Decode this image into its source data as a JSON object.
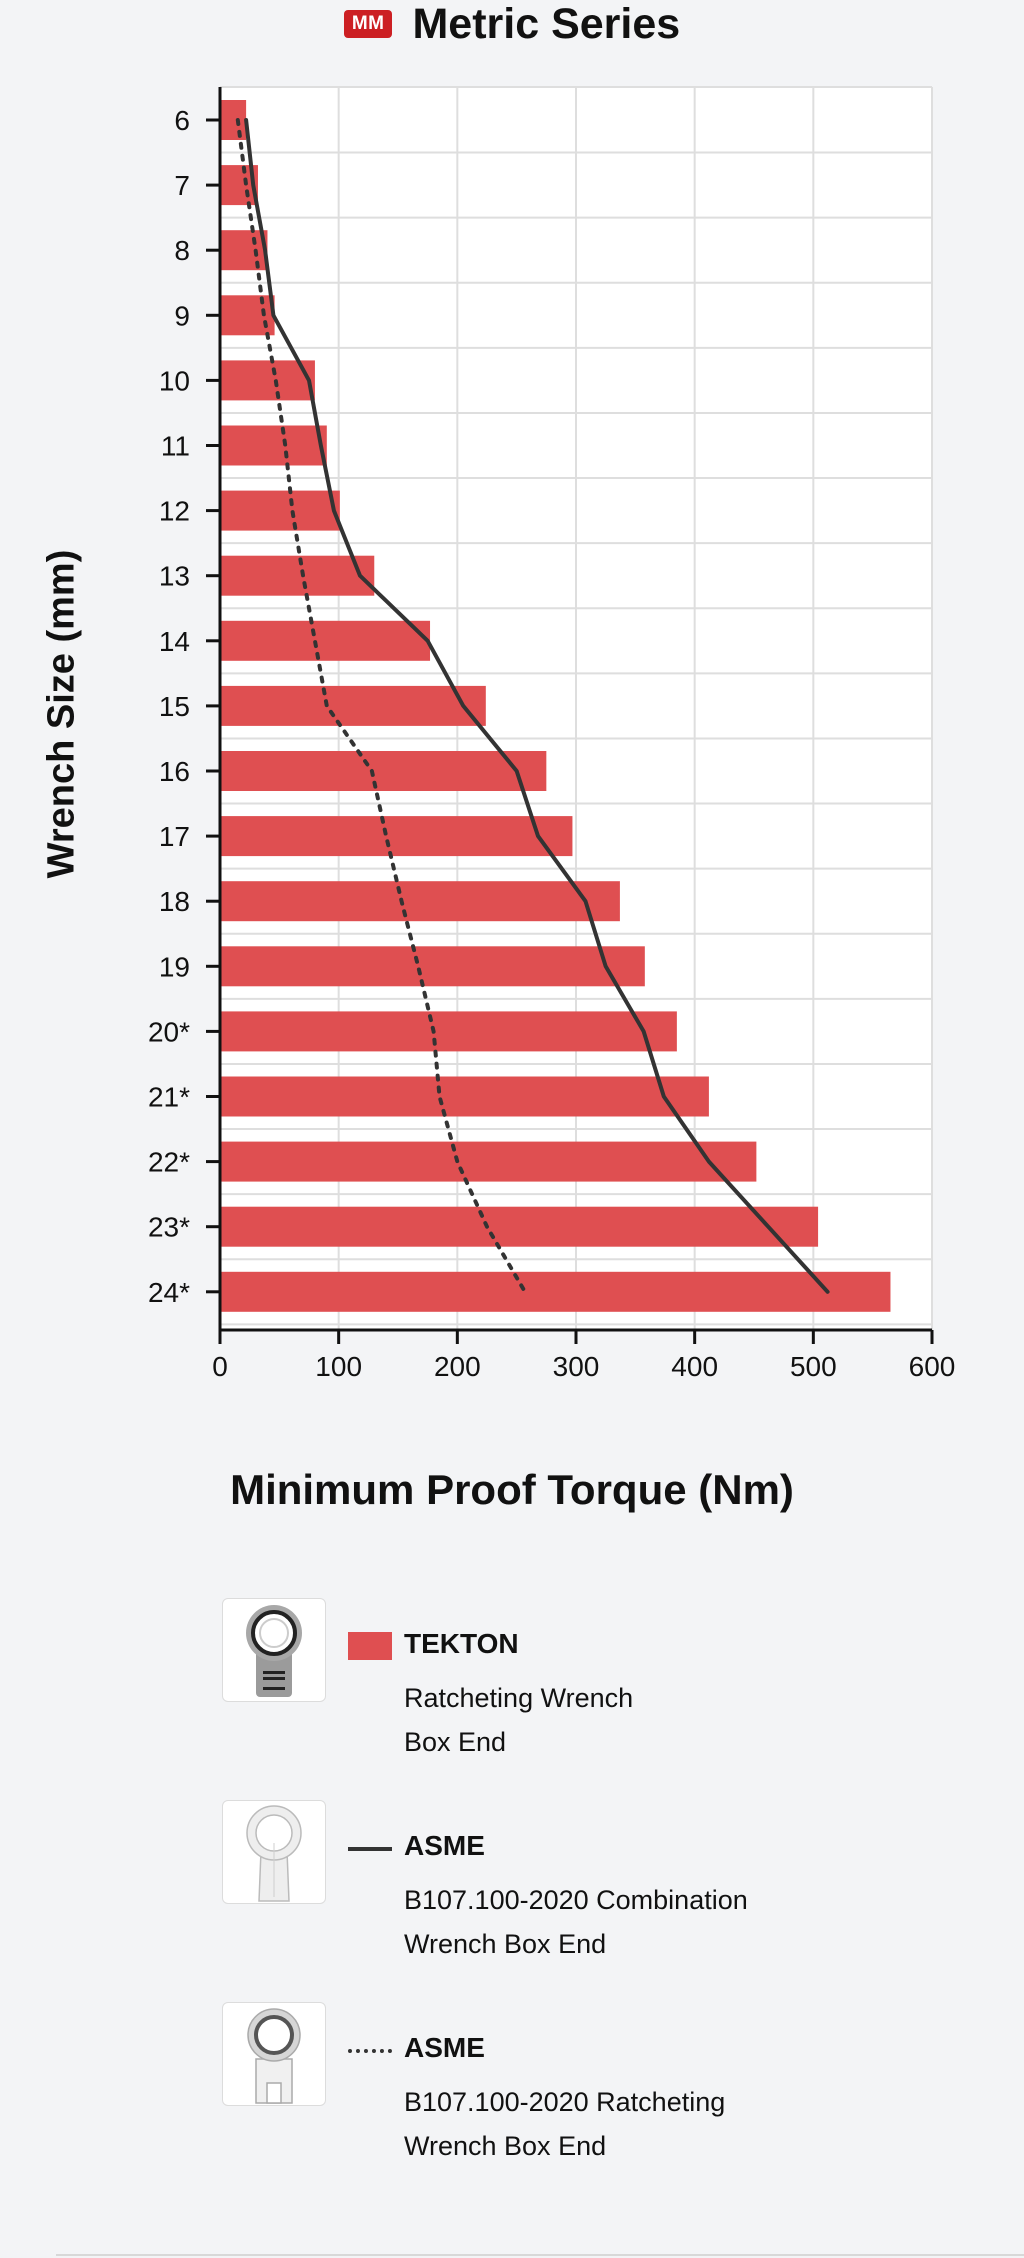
{
  "header": {
    "badge": "MM",
    "title": "Metric Series"
  },
  "colors": {
    "bar": "#df4f51",
    "line": "#333333",
    "badge": "#cc1f23"
  },
  "chart_data": {
    "type": "bar",
    "orientation": "horizontal",
    "title": "Metric Series",
    "xlabel": "Minimum Proof Torque (Nm)",
    "ylabel": "Wrench Size (mm)",
    "xlim": [
      0,
      600
    ],
    "xticks": [
      "0",
      "100",
      "200",
      "300",
      "400",
      "500",
      "600"
    ],
    "categories": [
      "6",
      "7",
      "8",
      "9",
      "10",
      "11",
      "12",
      "13",
      "14",
      "15",
      "16",
      "17",
      "18",
      "19",
      "20*",
      "21*",
      "22*",
      "23*",
      "24*"
    ],
    "grid": true,
    "series": [
      {
        "name": "TEKTON",
        "style": "bar",
        "values": [
          22,
          32,
          40,
          46,
          80,
          90,
          101,
          130,
          177,
          224,
          275,
          297,
          337,
          358,
          385,
          412,
          452,
          504,
          565
        ]
      },
      {
        "name": "ASME",
        "style": "solid-line",
        "values": [
          22,
          28,
          38,
          45,
          75,
          85,
          96,
          118,
          175,
          205,
          250,
          268,
          308,
          325,
          357,
          374,
          412,
          462,
          512
        ]
      },
      {
        "name": "ASME",
        "style": "dotted-line",
        "values": [
          15,
          22,
          30,
          37,
          47,
          55,
          61,
          70,
          80,
          90,
          128,
          140,
          153,
          167,
          180,
          185,
          200,
          225,
          257
        ]
      }
    ]
  },
  "legend": [
    {
      "icon": "ratcheting-wrench-box-end-icon",
      "swatch": "bar",
      "name": "TEKTON",
      "desc1": "Ratcheting Wrench",
      "desc2": "Box End"
    },
    {
      "icon": "combination-wrench-box-end-icon",
      "swatch": "solid-line",
      "name": "ASME",
      "desc1": "B107.100-2020 Combination",
      "desc2": "Wrench Box End"
    },
    {
      "icon": "ratcheting-wrench-box-end-icon",
      "swatch": "dotted-line",
      "name": "ASME",
      "desc1": "B107.100-2020 Ratcheting",
      "desc2": "Wrench Box End"
    }
  ]
}
